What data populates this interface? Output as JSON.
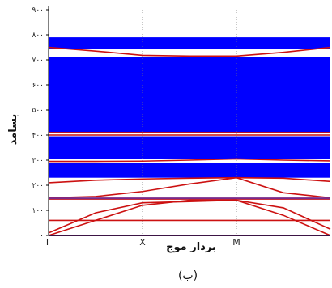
{
  "chart_data": {
    "type": "line",
    "title": "",
    "xlabel": "بردار موج",
    "ylabel": "بسامد",
    "caption": "(ب)",
    "ylim": [
      0,
      900
    ],
    "yticks": [
      {
        "value": 0,
        "label": "۰"
      },
      {
        "value": 100,
        "label": "۱۰۰"
      },
      {
        "value": 200,
        "label": "۲۰۰"
      },
      {
        "value": 300,
        "label": "۳۰۰"
      },
      {
        "value": 400,
        "label": "۴۰۰"
      },
      {
        "value": 500,
        "label": "۵۰۰"
      },
      {
        "value": 600,
        "label": "۶۰۰"
      },
      {
        "value": 700,
        "label": "۷۰۰"
      },
      {
        "value": 800,
        "label": "۸۰۰"
      },
      {
        "value": 900,
        "label": "۹۰۰"
      }
    ],
    "xticks": [
      {
        "value": 0,
        "label": "Γ"
      },
      {
        "value": 1,
        "label": "X"
      },
      {
        "value": 2,
        "label": "M"
      },
      {
        "value": 3,
        "label": ""
      }
    ],
    "xlim": [
      0,
      3
    ],
    "grid": "vertical-dotted-at-symmetry-points",
    "band_fill_color": "#0000ff",
    "curve_color": "#cc1111",
    "purple_color": "#7a2a8a",
    "band_regions": [
      [
        230,
        290
      ],
      [
        305,
        395
      ],
      [
        410,
        710
      ],
      [
        745,
        790
      ]
    ],
    "series": [
      {
        "x": [
          0,
          0.5,
          1,
          1.5,
          2,
          2.5,
          3
        ],
        "values": [
          0,
          60,
          120,
          140,
          140,
          80,
          0
        ]
      },
      {
        "x": [
          0,
          0.5,
          1,
          1.5,
          2,
          2.5,
          3
        ],
        "values": [
          10,
          90,
          130,
          135,
          140,
          110,
          25
        ]
      },
      {
        "x": [
          0,
          3
        ],
        "values": [
          60,
          60
        ]
      },
      {
        "x": [
          0,
          3
        ],
        "values": [
          145,
          145
        ]
      },
      {
        "x": [
          0,
          0.5,
          1,
          1.5,
          2,
          2.5,
          3
        ],
        "values": [
          150,
          155,
          175,
          205,
          230,
          170,
          150
        ]
      },
      {
        "x": [
          0,
          0.5,
          1,
          1.5,
          2,
          2.5,
          3
        ],
        "values": [
          210,
          220,
          225,
          228,
          230,
          228,
          215
        ]
      },
      {
        "x": [
          0,
          0.5,
          1,
          1.5,
          2,
          2.5,
          3
        ],
        "values": [
          295,
          295,
          296,
          300,
          305,
          300,
          297
        ]
      },
      {
        "x": [
          0,
          3
        ],
        "values": [
          400,
          400
        ]
      },
      {
        "x": [
          0,
          3
        ],
        "values": [
          410,
          410
        ]
      },
      {
        "x": [
          0,
          0.5,
          1,
          1.5,
          2,
          2.5,
          3
        ],
        "values": [
          750,
          735,
          718,
          715,
          715,
          730,
          750
        ]
      }
    ],
    "purple_lines": [
      0,
      148
    ]
  }
}
